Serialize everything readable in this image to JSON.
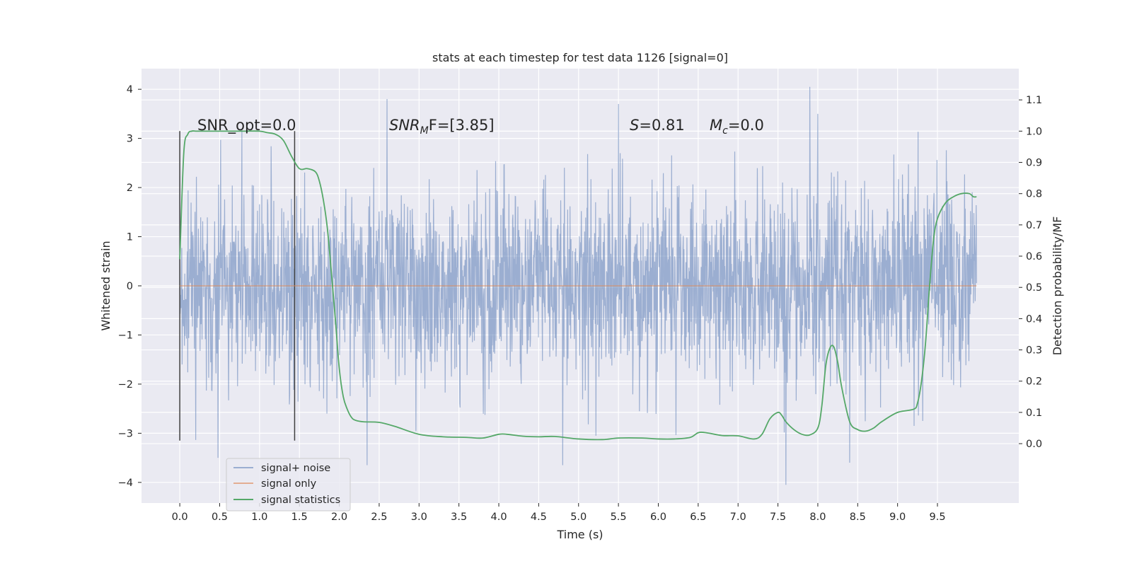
{
  "chart_data": {
    "type": "line",
    "title": "stats at each timestep for test data 1126 [signal=0]",
    "xlabel": "Time (s)",
    "ylabel": "Whitened strain",
    "ylabel_right": "Detection probability/MF",
    "xlim": [
      -0.48,
      10.52
    ],
    "ylim": [
      -4.42,
      4.42
    ],
    "ylim_right": [
      -0.19,
      1.2
    ],
    "xticks": [
      "0.0",
      "0.5",
      "1.0",
      "1.5",
      "2.0",
      "2.5",
      "3.0",
      "3.5",
      "4.0",
      "4.5",
      "5.0",
      "5.5",
      "6.0",
      "6.5",
      "7.0",
      "7.5",
      "8.0",
      "8.5",
      "9.0",
      "9.5"
    ],
    "yticks_left": [
      "4",
      "3",
      "2",
      "1",
      "0",
      "−1",
      "−2",
      "−3",
      "−4"
    ],
    "yticks_right": [
      "1.1",
      "1.0",
      "0.9",
      "0.8",
      "0.7",
      "0.6",
      "0.5",
      "0.4",
      "0.3",
      "0.2",
      "0.1",
      "0.0"
    ],
    "grid": true,
    "legend_position": "lower-left",
    "colors": {
      "noise": "#4c72b0",
      "signal": "#dd8452",
      "stat": "#55a868",
      "background": "#eaeaf2",
      "grid": "#ffffff",
      "marker_lines": "#404040"
    },
    "annotations": {
      "snr_opt": "SNR_opt=0.0",
      "snr_mf_main": "SNR",
      "snr_mf_sub": "M",
      "snr_mf_tail": "F=[3.85]",
      "s_main": "S",
      "s_tail": "=0.81",
      "mc_main": "M",
      "mc_sub": "c",
      "mc_tail": "=0.0"
    },
    "vertical_markers": [
      0.0,
      1.44
    ],
    "marker_ylim": [
      -3.15,
      3.15
    ],
    "series": [
      {
        "name": "signal+ noise",
        "kind": "noise",
        "t_range": [
          0.0,
          9.99
        ],
        "std": 0.95,
        "peaks": [
          {
            "x": 2.6,
            "y": 3.8
          },
          {
            "x": 7.9,
            "y": 4.05
          },
          {
            "x": 8.0,
            "y": 3.5
          },
          {
            "x": 0.48,
            "y": -3.5
          },
          {
            "x": 2.35,
            "y": -3.65
          },
          {
            "x": 7.6,
            "y": -4.05
          },
          {
            "x": 4.8,
            "y": -3.65
          },
          {
            "x": 5.5,
            "y": 3.7
          },
          {
            "x": 8.4,
            "y": -3.6
          }
        ]
      },
      {
        "name": "signal only",
        "kind": "signal",
        "x": [
          0.0,
          9.99
        ],
        "y": [
          0.0,
          0.0
        ]
      },
      {
        "name": "signal statistics",
        "kind": "stat",
        "x": [
          0.0,
          0.05,
          0.1,
          0.15,
          0.2,
          0.3,
          0.5,
          0.8,
          1.0,
          1.1,
          1.2,
          1.3,
          1.4,
          1.5,
          1.6,
          1.7,
          1.75,
          1.8,
          1.85,
          1.9,
          1.95,
          2.0,
          2.05,
          2.1,
          2.15,
          2.2,
          2.3,
          2.5,
          2.7,
          3.0,
          3.3,
          3.6,
          3.8,
          4.0,
          4.1,
          4.3,
          4.5,
          4.7,
          5.0,
          5.3,
          5.5,
          5.8,
          6.0,
          6.2,
          6.4,
          6.5,
          6.6,
          6.8,
          7.0,
          7.2,
          7.3,
          7.4,
          7.5,
          7.55,
          7.6,
          7.7,
          7.8,
          7.9,
          8.0,
          8.05,
          8.1,
          8.15,
          8.2,
          8.25,
          8.3,
          8.4,
          8.5,
          8.6,
          8.7,
          8.8,
          9.0,
          9.2,
          9.25,
          9.3,
          9.35,
          9.4,
          9.45,
          9.5,
          9.6,
          9.7,
          9.8,
          9.9,
          9.95,
          9.99
        ],
        "y": [
          0.59,
          0.93,
          0.99,
          1.0,
          1.0,
          1.0,
          1.0,
          1.0,
          1.0,
          0.995,
          0.99,
          0.97,
          0.92,
          0.88,
          0.88,
          0.87,
          0.84,
          0.78,
          0.69,
          0.55,
          0.4,
          0.24,
          0.15,
          0.11,
          0.085,
          0.075,
          0.07,
          0.068,
          0.055,
          0.03,
          0.022,
          0.02,
          0.018,
          0.03,
          0.03,
          0.024,
          0.022,
          0.023,
          0.015,
          0.013,
          0.018,
          0.018,
          0.015,
          0.015,
          0.02,
          0.035,
          0.035,
          0.026,
          0.025,
          0.015,
          0.03,
          0.08,
          0.1,
          0.09,
          0.07,
          0.045,
          0.03,
          0.028,
          0.05,
          0.12,
          0.25,
          0.305,
          0.31,
          0.26,
          0.18,
          0.07,
          0.045,
          0.04,
          0.05,
          0.07,
          0.1,
          0.11,
          0.13,
          0.2,
          0.32,
          0.5,
          0.65,
          0.72,
          0.77,
          0.79,
          0.8,
          0.8,
          0.79,
          0.79
        ]
      }
    ]
  }
}
